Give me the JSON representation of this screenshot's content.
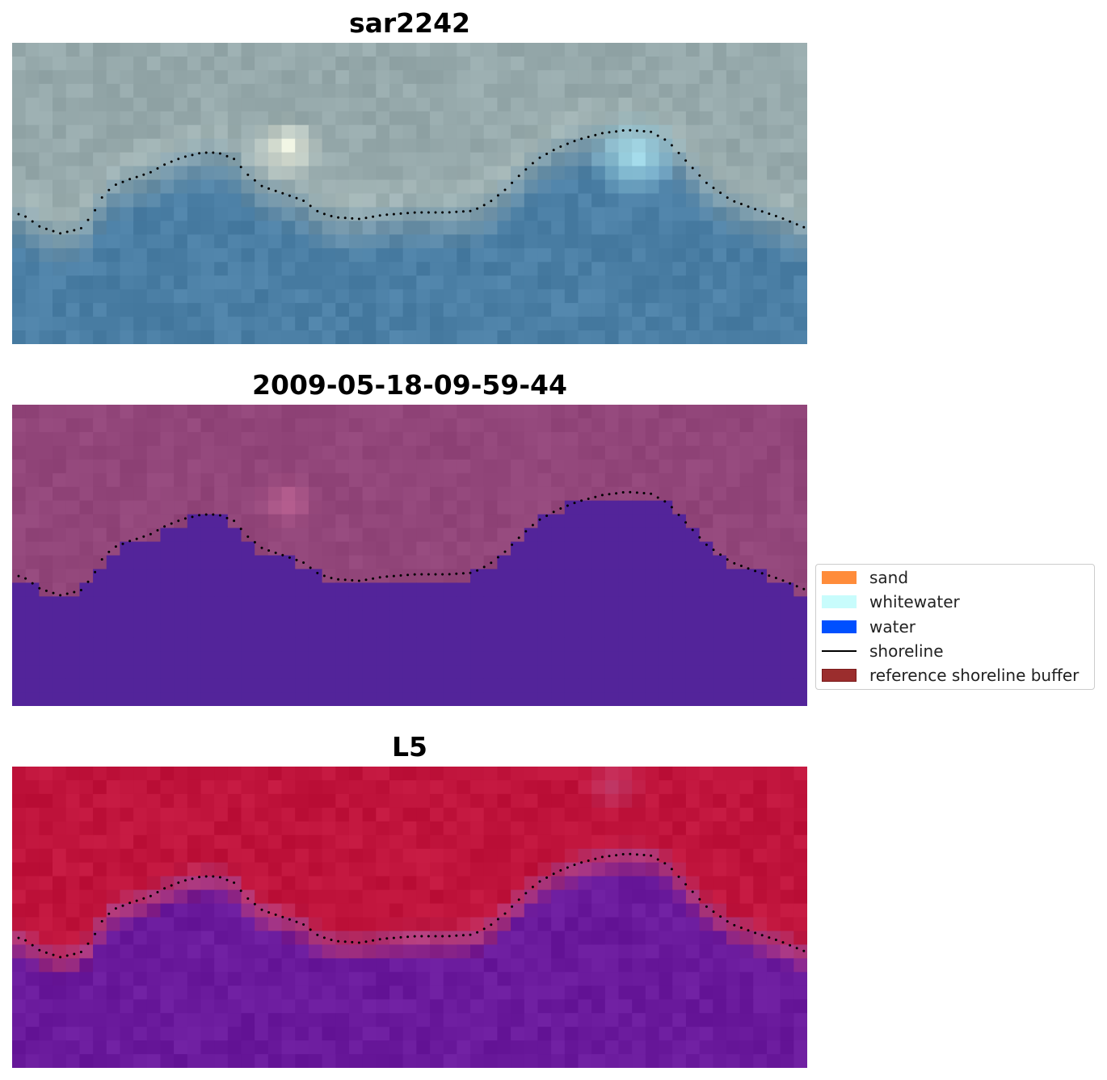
{
  "panels": [
    {
      "title": "sar2242"
    },
    {
      "title": "2009-05-18-09-59-44"
    },
    {
      "title": "L5"
    }
  ],
  "legend": {
    "items": [
      {
        "label": "sand",
        "color": "#ff8c3a",
        "kind": "patch"
      },
      {
        "label": "whitewater",
        "color": "#c8fcfc",
        "kind": "patch"
      },
      {
        "label": "water",
        "color": "#0050ff",
        "kind": "patch"
      },
      {
        "label": "shoreline",
        "color": "#000000",
        "kind": "line"
      },
      {
        "label": "reference shoreline buffer",
        "color": "#9b2d2d",
        "kind": "patch"
      }
    ]
  },
  "colors": {
    "sar_land": "#96a9ab",
    "sar_water": "#4b7fa5",
    "sar_bright": "#fcfce8",
    "sar_whitewater": "#b7f1fa",
    "mask_land": "#92467a",
    "mask_water": "#53249a",
    "ndwi_land": "#c0143c",
    "ndwi_water": "#6a1a9c",
    "shoreline": "#000000"
  }
}
